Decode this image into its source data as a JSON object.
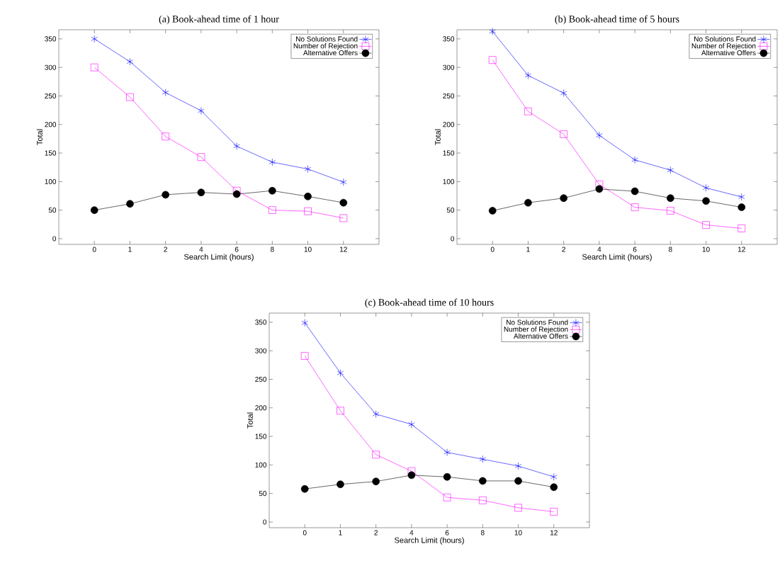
{
  "chart_data": [
    {
      "type": "line",
      "title": "(a) Book-ahead time of 1 hour",
      "xlabel": "Search Limit (hours)",
      "ylabel": "Total",
      "categories": [
        "0",
        "1",
        "2",
        "4",
        "6",
        "8",
        "10",
        "12"
      ],
      "ylim": [
        -10,
        366
      ],
      "yticks": [
        0,
        50,
        100,
        150,
        200,
        250,
        300,
        350
      ],
      "grid": false,
      "legend": "top right",
      "series": [
        {
          "name": "No Solutions Found",
          "color": "#0000ff",
          "marker": "cross",
          "values": [
            350,
            310,
            256,
            224,
            162,
            134,
            122,
            99
          ]
        },
        {
          "name": "Number of Rejection",
          "color": "#ff00ff",
          "marker": "square",
          "values": [
            300,
            248,
            179,
            143,
            84,
            50,
            48,
            36
          ]
        },
        {
          "name": "Alternative Offers",
          "color": "#000000",
          "marker": "circle",
          "values": [
            50,
            61,
            77,
            81,
            78,
            84,
            74,
            63
          ]
        }
      ]
    },
    {
      "type": "line",
      "title": "(b) Book-ahead time of 5 hours",
      "xlabel": "Search Limit (hours)",
      "ylabel": "Total",
      "categories": [
        "0",
        "1",
        "2",
        "4",
        "6",
        "8",
        "10",
        "12"
      ],
      "ylim": [
        -10,
        366
      ],
      "yticks": [
        0,
        50,
        100,
        150,
        200,
        250,
        300,
        350
      ],
      "grid": false,
      "legend": "top right",
      "series": [
        {
          "name": "No Solutions Found",
          "color": "#0000ff",
          "marker": "cross",
          "values": [
            363,
            286,
            255,
            181,
            138,
            120,
            89,
            73
          ]
        },
        {
          "name": "Number of Rejection",
          "color": "#ff00ff",
          "marker": "square",
          "values": [
            313,
            223,
            183,
            95,
            55,
            49,
            24,
            18
          ]
        },
        {
          "name": "Alternative Offers",
          "color": "#000000",
          "marker": "circle",
          "values": [
            49,
            63,
            71,
            87,
            83,
            71,
            66,
            55
          ]
        }
      ]
    },
    {
      "type": "line",
      "title": "(c) Book-ahead time of 10 hours",
      "xlabel": "Search Limit (hours)",
      "ylabel": "Total",
      "categories": [
        "0",
        "1",
        "2",
        "4",
        "6",
        "8",
        "10",
        "12"
      ],
      "ylim": [
        -10,
        366
      ],
      "yticks": [
        0,
        50,
        100,
        150,
        200,
        250,
        300,
        350
      ],
      "grid": false,
      "legend": "top right",
      "series": [
        {
          "name": "No Solutions Found",
          "color": "#0000ff",
          "marker": "cross",
          "values": [
            349,
            261,
            189,
            171,
            122,
            110,
            98,
            79
          ]
        },
        {
          "name": "Number of Rejection",
          "color": "#ff00ff",
          "marker": "square",
          "values": [
            291,
            195,
            118,
            89,
            43,
            38,
            25,
            18
          ]
        },
        {
          "name": "Alternative Offers",
          "color": "#000000",
          "marker": "circle",
          "values": [
            58,
            66,
            71,
            82,
            79,
            72,
            72,
            61
          ]
        }
      ]
    }
  ]
}
